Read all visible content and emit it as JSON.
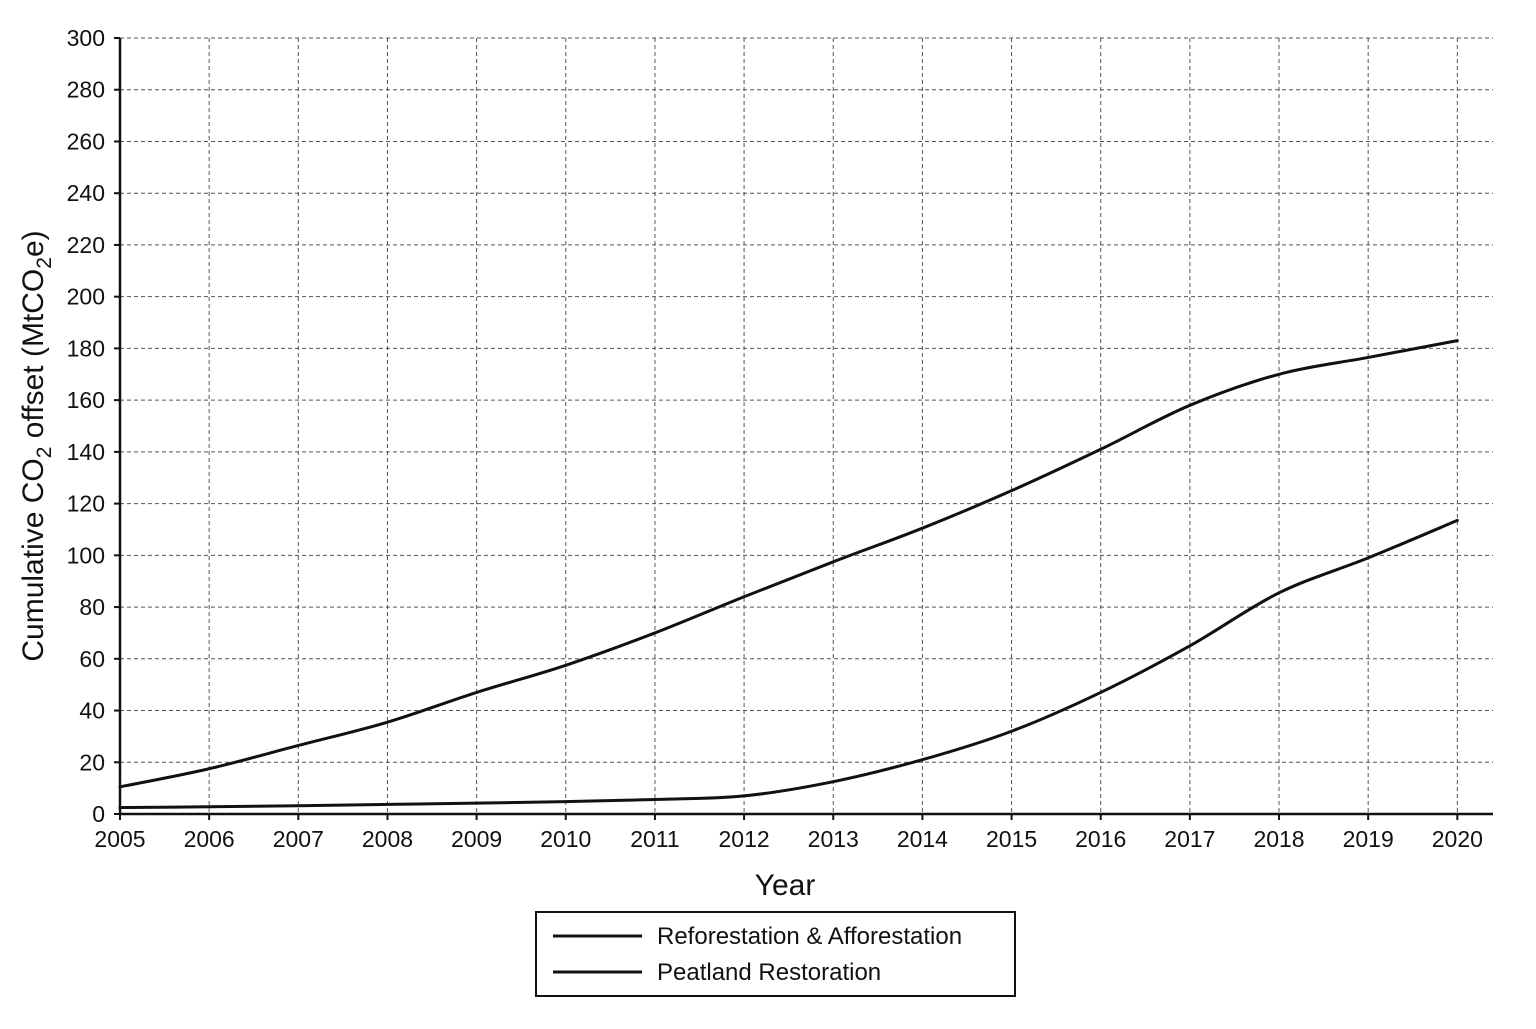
{
  "chart_data": {
    "type": "line",
    "title": "",
    "xlabel": "Year",
    "ylabel": {
      "pre": "Cumulative CO",
      "sub1": "2",
      "mid": " offset (MtCO",
      "sub2": "2",
      "post": "e)"
    },
    "x": [
      2005,
      2006,
      2007,
      2008,
      2009,
      2010,
      2011,
      2012,
      2013,
      2014,
      2015,
      2016,
      2017,
      2018,
      2019,
      2020
    ],
    "xlim": [
      2005,
      2020.4
    ],
    "ylim": [
      0,
      300
    ],
    "yticks": [
      0,
      20,
      40,
      60,
      80,
      100,
      120,
      140,
      160,
      180,
      200,
      220,
      240,
      260,
      280,
      300
    ],
    "grid": true,
    "series": [
      {
        "name": "Reforestation & Afforestation",
        "color": "#111111",
        "values": [
          10.5,
          17.5,
          26.5,
          35.5,
          47,
          57.5,
          70,
          84,
          97.5,
          110.5,
          125,
          141,
          158,
          170,
          176.5,
          183
        ]
      },
      {
        "name": "Peatland Restoration",
        "color": "#111111",
        "values": [
          2.5,
          2.8,
          3.2,
          3.7,
          4.2,
          4.8,
          5.6,
          7,
          12.5,
          21,
          32,
          47,
          65,
          85.5,
          99,
          113.5
        ]
      }
    ],
    "legend_position": "bottom-center"
  }
}
